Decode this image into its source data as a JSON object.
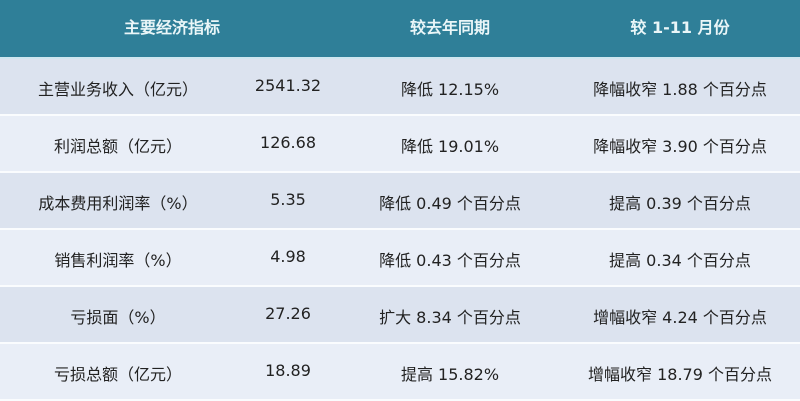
{
  "header": [
    "主要经济指标",
    "较去年同期",
    "较 1-11 月份"
  ],
  "rows": [
    [
      "主营业务收入（亿元）",
      "2541.32",
      "降低 12.15%",
      "降幅收窄 1.88 个百分点"
    ],
    [
      "利润总额（亿元）",
      "126.68",
      "降低 19.01%",
      "降幅收窄 3.90 个百分点"
    ],
    [
      "成本费用利润率（%）",
      "5.35",
      "降低 0.49 个百分点",
      "提高 0.39 个百分点"
    ],
    [
      "销售利润率（%）",
      "4.98",
      "降低 0.43 个百分点",
      "提高 0.34 个百分点"
    ],
    [
      "亏损面（%）",
      "27.26",
      "扩大 8.34 个百分点",
      "增幅收窄 4.24 个百分点"
    ],
    [
      "亏损总额（亿元）",
      "18.89",
      "提高 15.82%",
      "增幅收窄 18.79 个百分点"
    ]
  ],
  "colors": {
    "header": "#2f7f98",
    "row_odd": "#dce3ef",
    "row_even": "#e9eef7"
  }
}
